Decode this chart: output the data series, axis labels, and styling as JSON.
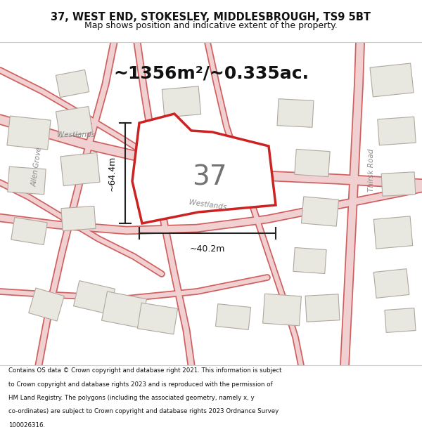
{
  "title_line1": "37, WEST END, STOKESLEY, MIDDLESBROUGH, TS9 5BT",
  "title_line2": "Map shows position and indicative extent of the property.",
  "area_text": "~1356m²/~0.335ac.",
  "property_number": "37",
  "dim_width": "~40.2m",
  "dim_height": "~64.4m",
  "footer_lines": [
    "Contains OS data © Crown copyright and database right 2021. This information is subject",
    "to Crown copyright and database rights 2023 and is reproduced with the permission of",
    "HM Land Registry. The polygons (including the associated geometry, namely x, y",
    "co-ordinates) are subject to Crown copyright and database rights 2023 Ordnance Survey",
    "100026316."
  ],
  "map_bg": "#f0ede8",
  "highlight_color": "#cc2222",
  "building_fill": "#e8e8e0",
  "property_fill": "#ffffff",
  "header_bg": "#ffffff",
  "footer_bg": "#ffffff",
  "road_edge_color": "#d06060",
  "road_fill_color": "#f0d0d0",
  "label_color": "#888888",
  "dim_color": "#222222",
  "text_color": "#111111",
  "building_edge": "#b0a8a0"
}
